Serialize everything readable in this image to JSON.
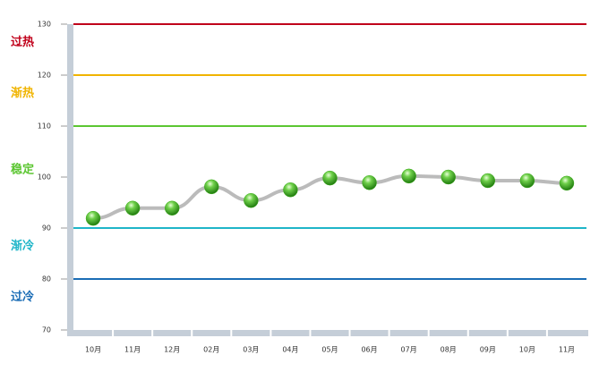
{
  "chart_data": {
    "type": "line",
    "categories": [
      "10月",
      "11月",
      "12月",
      "02月",
      "03月",
      "04月",
      "05月",
      "06月",
      "07月",
      "08月",
      "09月",
      "10月",
      "11月"
    ],
    "values": [
      91.9,
      93.9,
      93.9,
      98.1,
      95.4,
      97.5,
      99.8,
      98.9,
      100.2,
      100,
      99.3,
      99.3,
      98.8
    ],
    "color": "#bbbbbb",
    "marker_color": "#3fae1e",
    "ylim": [
      70,
      130
    ],
    "yticks": [
      70,
      80,
      90,
      100,
      110,
      120,
      130
    ],
    "zones": [
      {
        "label": "过热",
        "color": "#c0001a",
        "range": [
          120,
          130
        ]
      },
      {
        "label": "渐热",
        "color": "#f0b400",
        "range": [
          110,
          120
        ]
      },
      {
        "label": "稳定",
        "color": "#5cc632",
        "range": [
          90,
          110
        ]
      },
      {
        "label": "渐冷",
        "color": "#1fb5c8",
        "range": [
          80,
          90
        ]
      },
      {
        "label": "过冷",
        "color": "#1a6cb5",
        "range": [
          70,
          80
        ]
      }
    ]
  }
}
